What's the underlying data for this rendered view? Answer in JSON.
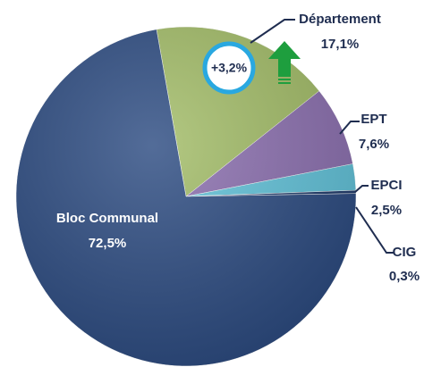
{
  "chart_data": {
    "type": "pie",
    "categories": [
      "Département",
      "EPT",
      "EPCI",
      "CIG",
      "Bloc Communal"
    ],
    "values": [
      17.1,
      7.6,
      2.5,
      0.3,
      72.5
    ],
    "value_labels": [
      "17,1%",
      "7,6%",
      "2,5%",
      "0,3%",
      "72,5%"
    ],
    "colors": [
      "#a3bd68",
      "#8c70b0",
      "#62c3da",
      "#1f3b6c",
      "#2d4c82"
    ],
    "annotation": "+3,2%"
  }
}
